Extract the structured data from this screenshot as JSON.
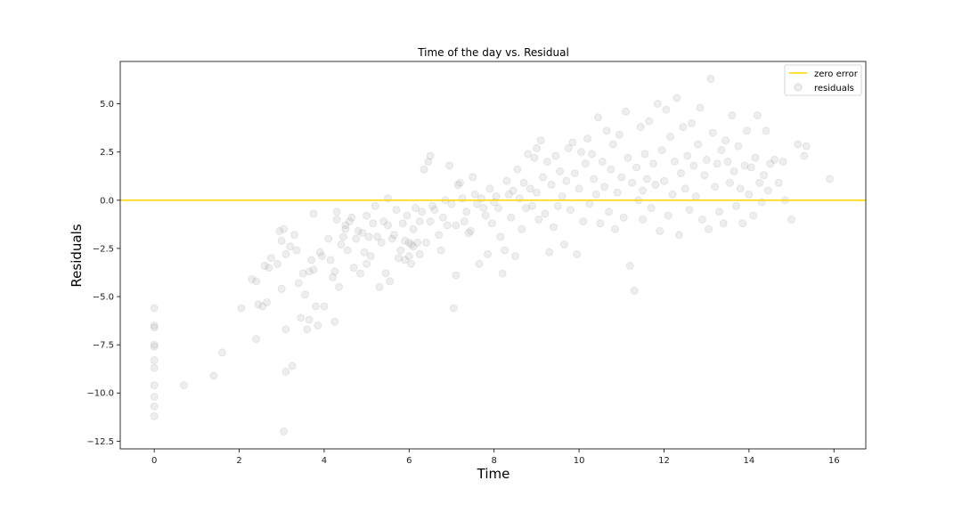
{
  "chart_data": {
    "type": "scatter",
    "title": "Time of the day vs. Residual",
    "xlabel": "Time",
    "ylabel": "Residuals",
    "xlim": [
      -0.8,
      16.75
    ],
    "ylim": [
      -12.9,
      7.2
    ],
    "xticks": [
      0,
      2,
      4,
      6,
      8,
      10,
      12,
      14,
      16
    ],
    "yticks": [
      -12.5,
      -10.0,
      -7.5,
      -5.0,
      -2.5,
      0.0,
      2.5,
      5.0
    ],
    "xtick_labels": [
      "0",
      "2",
      "4",
      "6",
      "8",
      "10",
      "12",
      "14",
      "16"
    ],
    "ytick_labels": [
      "−12.5",
      "−10.0",
      "−7.5",
      "−5.0",
      "−2.5",
      "0.0",
      "2.5",
      "5.0"
    ],
    "grid": false,
    "legend": {
      "location": "top-right",
      "entries": [
        {
          "label": "zero error",
          "kind": "line"
        },
        {
          "label": "residuals",
          "kind": "marker"
        }
      ]
    },
    "colors": {
      "zero_line": "#ffd700",
      "points": "#a9a9a9"
    },
    "series": [
      {
        "name": "zero error",
        "kind": "hline",
        "y": 0
      },
      {
        "name": "residuals",
        "kind": "scatter",
        "alpha": 0.2,
        "points": [
          [
            0,
            -5.6
          ],
          [
            0,
            -6.5
          ],
          [
            0,
            -6.6
          ],
          [
            0,
            -7.5
          ],
          [
            0,
            -7.6
          ],
          [
            0,
            -8.3
          ],
          [
            0,
            -8.7
          ],
          [
            0,
            -9.6
          ],
          [
            0,
            -10.2
          ],
          [
            0,
            -10.7
          ],
          [
            0,
            -11.2
          ],
          [
            0.7,
            -9.6
          ],
          [
            1.4,
            -9.1
          ],
          [
            1.6,
            -7.9
          ],
          [
            2.05,
            -5.6
          ],
          [
            2.3,
            -4.1
          ],
          [
            2.4,
            -4.2
          ],
          [
            2.4,
            -7.2
          ],
          [
            2.45,
            -5.4
          ],
          [
            2.55,
            -5.5
          ],
          [
            2.6,
            -3.4
          ],
          [
            2.65,
            -5.3
          ],
          [
            2.7,
            -3.5
          ],
          [
            2.75,
            -3.0
          ],
          [
            2.9,
            -3.3
          ],
          [
            2.95,
            -1.6
          ],
          [
            3.0,
            -2.1
          ],
          [
            3.0,
            -4.6
          ],
          [
            3.05,
            -1.5
          ],
          [
            3.05,
            -12.0
          ],
          [
            3.1,
            -2.8
          ],
          [
            3.1,
            -6.7
          ],
          [
            3.1,
            -8.9
          ],
          [
            3.2,
            -2.4
          ],
          [
            3.25,
            -8.6
          ],
          [
            3.3,
            -1.8
          ],
          [
            3.35,
            -2.6
          ],
          [
            3.4,
            -4.3
          ],
          [
            3.45,
            -6.1
          ],
          [
            3.5,
            -3.8
          ],
          [
            3.55,
            -4.9
          ],
          [
            3.6,
            -6.7
          ],
          [
            3.65,
            -3.7
          ],
          [
            3.65,
            -6.2
          ],
          [
            3.7,
            -3.1
          ],
          [
            3.75,
            -3.6
          ],
          [
            3.75,
            -0.7
          ],
          [
            3.8,
            -5.5
          ],
          [
            3.85,
            -6.5
          ],
          [
            3.9,
            -2.7
          ],
          [
            3.95,
            -2.9
          ],
          [
            4.0,
            -5.5
          ],
          [
            4.1,
            -2.0
          ],
          [
            4.15,
            -3.1
          ],
          [
            4.2,
            -4.0
          ],
          [
            4.25,
            -3.7
          ],
          [
            4.25,
            -6.3
          ],
          [
            4.3,
            -1.0
          ],
          [
            4.3,
            -0.6
          ],
          [
            4.35,
            -4.5
          ],
          [
            4.4,
            -2.3
          ],
          [
            4.45,
            -1.9
          ],
          [
            4.5,
            -1.3
          ],
          [
            4.5,
            -1.5
          ],
          [
            4.55,
            -2.6
          ],
          [
            4.6,
            -1.1
          ],
          [
            4.65,
            -0.9
          ],
          [
            4.7,
            -3.5
          ],
          [
            4.75,
            -2.0
          ],
          [
            4.8,
            -1.6
          ],
          [
            4.85,
            -3.8
          ],
          [
            4.9,
            -1.7
          ],
          [
            4.95,
            -2.7
          ],
          [
            5.0,
            -0.8
          ],
          [
            5.0,
            -3.3
          ],
          [
            5.05,
            -1.9
          ],
          [
            5.1,
            -2.9
          ],
          [
            5.15,
            -1.2
          ],
          [
            5.2,
            -0.3
          ],
          [
            5.25,
            -1.9
          ],
          [
            5.3,
            -4.5
          ],
          [
            5.35,
            -2.2
          ],
          [
            5.4,
            -1.1
          ],
          [
            5.45,
            -3.8
          ],
          [
            5.5,
            0.1
          ],
          [
            5.5,
            -1.3
          ],
          [
            5.55,
            -4.2
          ],
          [
            5.6,
            -2.0
          ],
          [
            5.65,
            -1.8
          ],
          [
            5.7,
            -0.5
          ],
          [
            5.75,
            -3.0
          ],
          [
            5.8,
            -2.6
          ],
          [
            5.85,
            -1.2
          ],
          [
            5.9,
            -2.1
          ],
          [
            5.9,
            -3.1
          ],
          [
            5.95,
            -0.8
          ],
          [
            6.0,
            -2.2
          ],
          [
            6.0,
            -2.9
          ],
          [
            6.05,
            -2.3
          ],
          [
            6.05,
            -3.3
          ],
          [
            6.1,
            -2.4
          ],
          [
            6.1,
            -1.5
          ],
          [
            6.15,
            -0.4
          ],
          [
            6.2,
            -2.2
          ],
          [
            6.25,
            -2.8
          ],
          [
            6.25,
            -1.1
          ],
          [
            6.3,
            -0.6
          ],
          [
            6.35,
            1.6
          ],
          [
            6.4,
            -2.2
          ],
          [
            6.45,
            2.0
          ],
          [
            6.5,
            2.3
          ],
          [
            6.5,
            -1.1
          ],
          [
            6.55,
            -0.3
          ],
          [
            6.6,
            -0.5
          ],
          [
            6.7,
            -1.8
          ],
          [
            6.75,
            -2.6
          ],
          [
            6.8,
            -0.9
          ],
          [
            6.85,
            0.0
          ],
          [
            6.9,
            -1.3
          ],
          [
            6.95,
            1.8
          ],
          [
            7.0,
            -0.2
          ],
          [
            7.05,
            -5.6
          ],
          [
            7.1,
            -1.3
          ],
          [
            7.1,
            -3.9
          ],
          [
            7.15,
            0.8
          ],
          [
            7.2,
            0.9
          ],
          [
            7.25,
            0.1
          ],
          [
            7.3,
            -1.1
          ],
          [
            7.35,
            -0.6
          ],
          [
            7.4,
            -1.7
          ],
          [
            7.45,
            -1.6
          ],
          [
            7.5,
            1.2
          ],
          [
            7.55,
            0.3
          ],
          [
            7.6,
            -0.2
          ],
          [
            7.65,
            -3.3
          ],
          [
            7.7,
            0.1
          ],
          [
            7.75,
            -0.4
          ],
          [
            7.8,
            -0.8
          ],
          [
            7.85,
            -2.8
          ],
          [
            7.9,
            0.6
          ],
          [
            7.95,
            -1.2
          ],
          [
            8.0,
            -0.1
          ],
          [
            8.05,
            0.2
          ],
          [
            8.1,
            -0.4
          ],
          [
            8.15,
            -1.9
          ],
          [
            8.2,
            -3.8
          ],
          [
            8.25,
            -2.6
          ],
          [
            8.3,
            1.0
          ],
          [
            8.35,
            0.3
          ],
          [
            8.4,
            -0.9
          ],
          [
            8.45,
            0.5
          ],
          [
            8.5,
            -2.9
          ],
          [
            8.55,
            1.6
          ],
          [
            8.6,
            0.1
          ],
          [
            8.65,
            -1.5
          ],
          [
            8.7,
            0.9
          ],
          [
            8.75,
            -0.4
          ],
          [
            8.8,
            2.4
          ],
          [
            8.85,
            0.6
          ],
          [
            8.9,
            -0.3
          ],
          [
            8.95,
            2.2
          ],
          [
            9.0,
            2.7
          ],
          [
            9.0,
            0.4
          ],
          [
            9.05,
            -1.0
          ],
          [
            9.1,
            3.1
          ],
          [
            9.15,
            1.2
          ],
          [
            9.2,
            -0.7
          ],
          [
            9.25,
            2.0
          ],
          [
            9.3,
            -2.7
          ],
          [
            9.35,
            0.8
          ],
          [
            9.4,
            -1.4
          ],
          [
            9.45,
            2.3
          ],
          [
            9.5,
            -0.3
          ],
          [
            9.55,
            1.5
          ],
          [
            9.6,
            0.2
          ],
          [
            9.65,
            -2.3
          ],
          [
            9.7,
            1.0
          ],
          [
            9.75,
            2.7
          ],
          [
            9.8,
            -0.5
          ],
          [
            9.85,
            3.0
          ],
          [
            9.9,
            1.4
          ],
          [
            9.95,
            -2.8
          ],
          [
            10.0,
            0.6
          ],
          [
            10.05,
            2.5
          ],
          [
            10.1,
            -1.1
          ],
          [
            10.15,
            1.9
          ],
          [
            10.2,
            3.2
          ],
          [
            10.25,
            -0.2
          ],
          [
            10.3,
            2.4
          ],
          [
            10.35,
            1.1
          ],
          [
            10.4,
            0.3
          ],
          [
            10.45,
            4.3
          ],
          [
            10.5,
            -1.2
          ],
          [
            10.55,
            2.0
          ],
          [
            10.6,
            0.7
          ],
          [
            10.65,
            3.6
          ],
          [
            10.7,
            -0.6
          ],
          [
            10.75,
            1.6
          ],
          [
            10.8,
            2.9
          ],
          [
            10.85,
            -1.5
          ],
          [
            10.9,
            0.4
          ],
          [
            10.95,
            3.4
          ],
          [
            11.0,
            1.2
          ],
          [
            11.05,
            -0.9
          ],
          [
            11.1,
            4.6
          ],
          [
            11.15,
            2.2
          ],
          [
            11.2,
            -3.4
          ],
          [
            11.25,
            0.9
          ],
          [
            11.3,
            -4.7
          ],
          [
            11.35,
            1.7
          ],
          [
            11.4,
            0.0
          ],
          [
            11.45,
            3.8
          ],
          [
            11.5,
            -1.0
          ],
          [
            11.5,
            0.5
          ],
          [
            11.55,
            2.4
          ],
          [
            11.6,
            1.1
          ],
          [
            11.65,
            4.1
          ],
          [
            11.7,
            -0.4
          ],
          [
            11.75,
            1.9
          ],
          [
            11.8,
            0.8
          ],
          [
            11.85,
            5.0
          ],
          [
            11.9,
            -1.6
          ],
          [
            11.95,
            2.6
          ],
          [
            12.0,
            1.0
          ],
          [
            12.05,
            4.7
          ],
          [
            12.1,
            -0.8
          ],
          [
            12.15,
            3.3
          ],
          [
            12.2,
            0.3
          ],
          [
            12.25,
            2.0
          ],
          [
            12.3,
            5.3
          ],
          [
            12.35,
            -1.8
          ],
          [
            12.4,
            1.4
          ],
          [
            12.45,
            3.8
          ],
          [
            12.5,
            0.6
          ],
          [
            12.55,
            2.3
          ],
          [
            12.6,
            -0.5
          ],
          [
            12.65,
            4.0
          ],
          [
            12.7,
            1.8
          ],
          [
            12.75,
            0.2
          ],
          [
            12.8,
            2.9
          ],
          [
            12.85,
            4.8
          ],
          [
            12.9,
            -1.0
          ],
          [
            12.95,
            1.3
          ],
          [
            13.0,
            2.1
          ],
          [
            13.05,
            -1.5
          ],
          [
            13.1,
            6.3
          ],
          [
            13.15,
            3.5
          ],
          [
            13.2,
            0.7
          ],
          [
            13.25,
            1.9
          ],
          [
            13.3,
            -0.6
          ],
          [
            13.35,
            2.6
          ],
          [
            13.4,
            -1.2
          ],
          [
            13.45,
            3.1
          ],
          [
            13.5,
            2.0
          ],
          [
            13.55,
            0.9
          ],
          [
            13.6,
            4.4
          ],
          [
            13.65,
            1.5
          ],
          [
            13.7,
            -0.3
          ],
          [
            13.75,
            2.8
          ],
          [
            13.8,
            0.6
          ],
          [
            13.85,
            -1.2
          ],
          [
            13.9,
            1.8
          ],
          [
            13.95,
            3.6
          ],
          [
            14.0,
            0.3
          ],
          [
            14.05,
            1.7
          ],
          [
            14.1,
            -0.8
          ],
          [
            14.15,
            2.2
          ],
          [
            14.2,
            4.4
          ],
          [
            14.25,
            0.9
          ],
          [
            14.3,
            -0.1
          ],
          [
            14.35,
            1.3
          ],
          [
            14.4,
            3.6
          ],
          [
            14.45,
            0.5
          ],
          [
            14.5,
            1.9
          ],
          [
            14.6,
            2.1
          ],
          [
            14.7,
            0.9
          ],
          [
            14.8,
            2.0
          ],
          [
            14.85,
            0.0
          ],
          [
            15.0,
            -1.0
          ],
          [
            15.15,
            2.9
          ],
          [
            15.3,
            2.3
          ],
          [
            15.35,
            2.8
          ],
          [
            15.9,
            1.1
          ]
        ]
      }
    ]
  }
}
